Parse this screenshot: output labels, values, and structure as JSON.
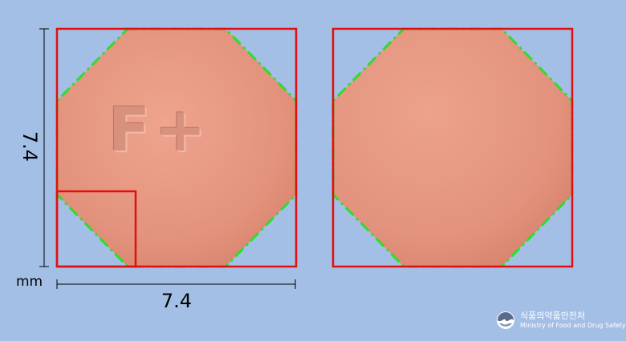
{
  "dimensions": {
    "height_label": "7.4",
    "width_label": "7.4",
    "unit": "mm"
  },
  "pills": {
    "front": {
      "imprint": "F+",
      "color": "#e79a84",
      "shape": "octagon"
    },
    "back": {
      "imprint": "",
      "color": "#e79a84",
      "shape": "octagon"
    }
  },
  "colors": {
    "background": "#a4bfe6",
    "bounding_box": "#e01010",
    "contour": "#28e028"
  },
  "logo": {
    "korean": "식품의약품안전처",
    "english": "Ministry of Food and Drug Safety",
    "icon": "mfds-logo-icon"
  }
}
